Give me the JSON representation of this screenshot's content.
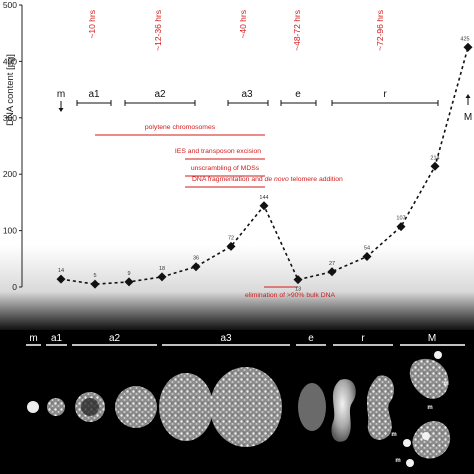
{
  "chart_data": {
    "type": "line",
    "ylabel": "DNA content [pg]",
    "ylim": [
      0,
      500
    ],
    "yticks": [
      0,
      100,
      200,
      300,
      400,
      500
    ],
    "points": [
      {
        "label": "14",
        "value": 14
      },
      {
        "label": "5",
        "value": 5
      },
      {
        "label": "9",
        "value": 9
      },
      {
        "label": "18",
        "value": 18
      },
      {
        "label": "36",
        "value": 36
      },
      {
        "label": "72",
        "value": 72
      },
      {
        "label": "144",
        "value": 144
      },
      {
        "label": "13",
        "value": 13
      },
      {
        "label": "27",
        "value": 27
      },
      {
        "label": "54",
        "value": 54
      },
      {
        "label": "107",
        "value": 107
      },
      {
        "label": "214",
        "value": 214
      },
      {
        "label": "425",
        "value": 425
      }
    ],
    "time_labels": [
      "~10 hrs",
      "~12-36 hrs",
      "~40 hrs",
      "~48-72 hrs",
      "~72-96 hrs"
    ],
    "stages": [
      "m",
      "a1",
      "a2",
      "a3",
      "e",
      "r",
      "M"
    ],
    "processes": [
      "polytene chromosomes",
      "IES and transposon excision",
      "unscrambling of MDSs",
      "DNA fragmentation and de novo telomere addition",
      "elimination of >90% bulk DNA"
    ],
    "process_parts": {
      "before": "DNA fragmentation and ",
      "italic": "de novo",
      "after": " telomere addition"
    },
    "micrograph_stages": [
      "m",
      "a1",
      "a2",
      "a3",
      "e",
      "r",
      "M"
    ],
    "micrograph_markers": [
      "m",
      "m",
      "m",
      "m"
    ],
    "colors": {
      "annotation": "#d21a1a",
      "line": "#111111",
      "micrograph_bg": "#000000"
    }
  }
}
